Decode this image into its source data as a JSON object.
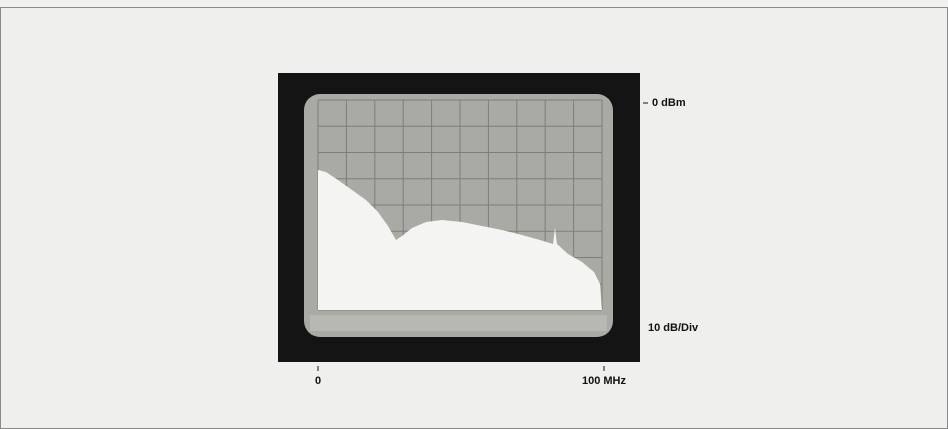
{
  "annotations": {
    "reference_level": "0 dBm",
    "scale": "10 dB/Div",
    "x_start": "0",
    "x_end": "100 MHz"
  }
}
